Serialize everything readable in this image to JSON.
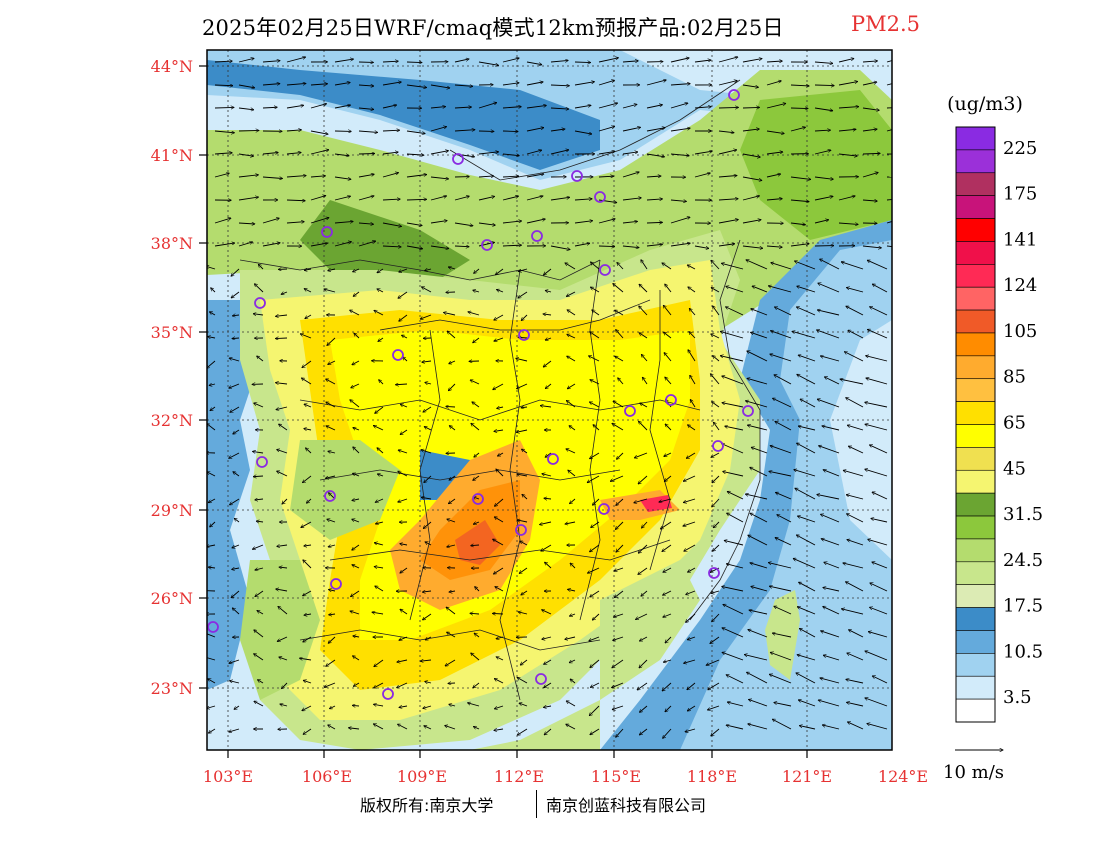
{
  "title": {
    "main": "2025年02月25日WRF/cmaq模式12km预报产品:02月25日",
    "pollutant": "PM2.5"
  },
  "axes": {
    "lat_labels": [
      "44°N",
      "41°N",
      "38°N",
      "35°N",
      "32°N",
      "29°N",
      "26°N",
      "23°N"
    ],
    "lon_labels": [
      "103°E",
      "106°E",
      "109°E",
      "112°E",
      "115°E",
      "118°E",
      "121°E",
      "124°E"
    ],
    "label_color": "#e63232"
  },
  "legend": {
    "unit": "(ug/m3)",
    "levels": [
      {
        "color": "#8a2be2",
        "label": "225"
      },
      {
        "color": "#9b30d9",
        "label": ""
      },
      {
        "color": "#b03060",
        "label": "175"
      },
      {
        "color": "#c8137a",
        "label": ""
      },
      {
        "color": "#ff0000",
        "label": "141"
      },
      {
        "color": "#f0104a",
        "label": ""
      },
      {
        "color": "#ff2a55",
        "label": "124"
      },
      {
        "color": "#ff6464",
        "label": ""
      },
      {
        "color": "#f05a28",
        "label": "105"
      },
      {
        "color": "#ff8c00",
        "label": ""
      },
      {
        "color": "#ffab2e",
        "label": "85"
      },
      {
        "color": "#ffc040",
        "label": ""
      },
      {
        "color": "#ffe000",
        "label": "65"
      },
      {
        "color": "#ffff00",
        "label": ""
      },
      {
        "color": "#f0e050",
        "label": "45"
      },
      {
        "color": "#f5f570",
        "label": ""
      },
      {
        "color": "#6ba532",
        "label": "31.5"
      },
      {
        "color": "#8cc83c",
        "label": ""
      },
      {
        "color": "#b4dc6e",
        "label": "24.5"
      },
      {
        "color": "#c8e68c",
        "label": ""
      },
      {
        "color": "#dcebb4",
        "label": "17.5"
      },
      {
        "color": "#3c8cc8",
        "label": ""
      },
      {
        "color": "#64aadc",
        "label": "10.5"
      },
      {
        "color": "#a0d2f0",
        "label": ""
      },
      {
        "color": "#d2ebfa",
        "label": "3.5"
      },
      {
        "color": "#ffffff",
        "label": ""
      }
    ],
    "wind_label": "10 m/s"
  },
  "footer": {
    "copyright": "版权所有:南京大学",
    "company": "南京创蓝科技有限公司"
  }
}
